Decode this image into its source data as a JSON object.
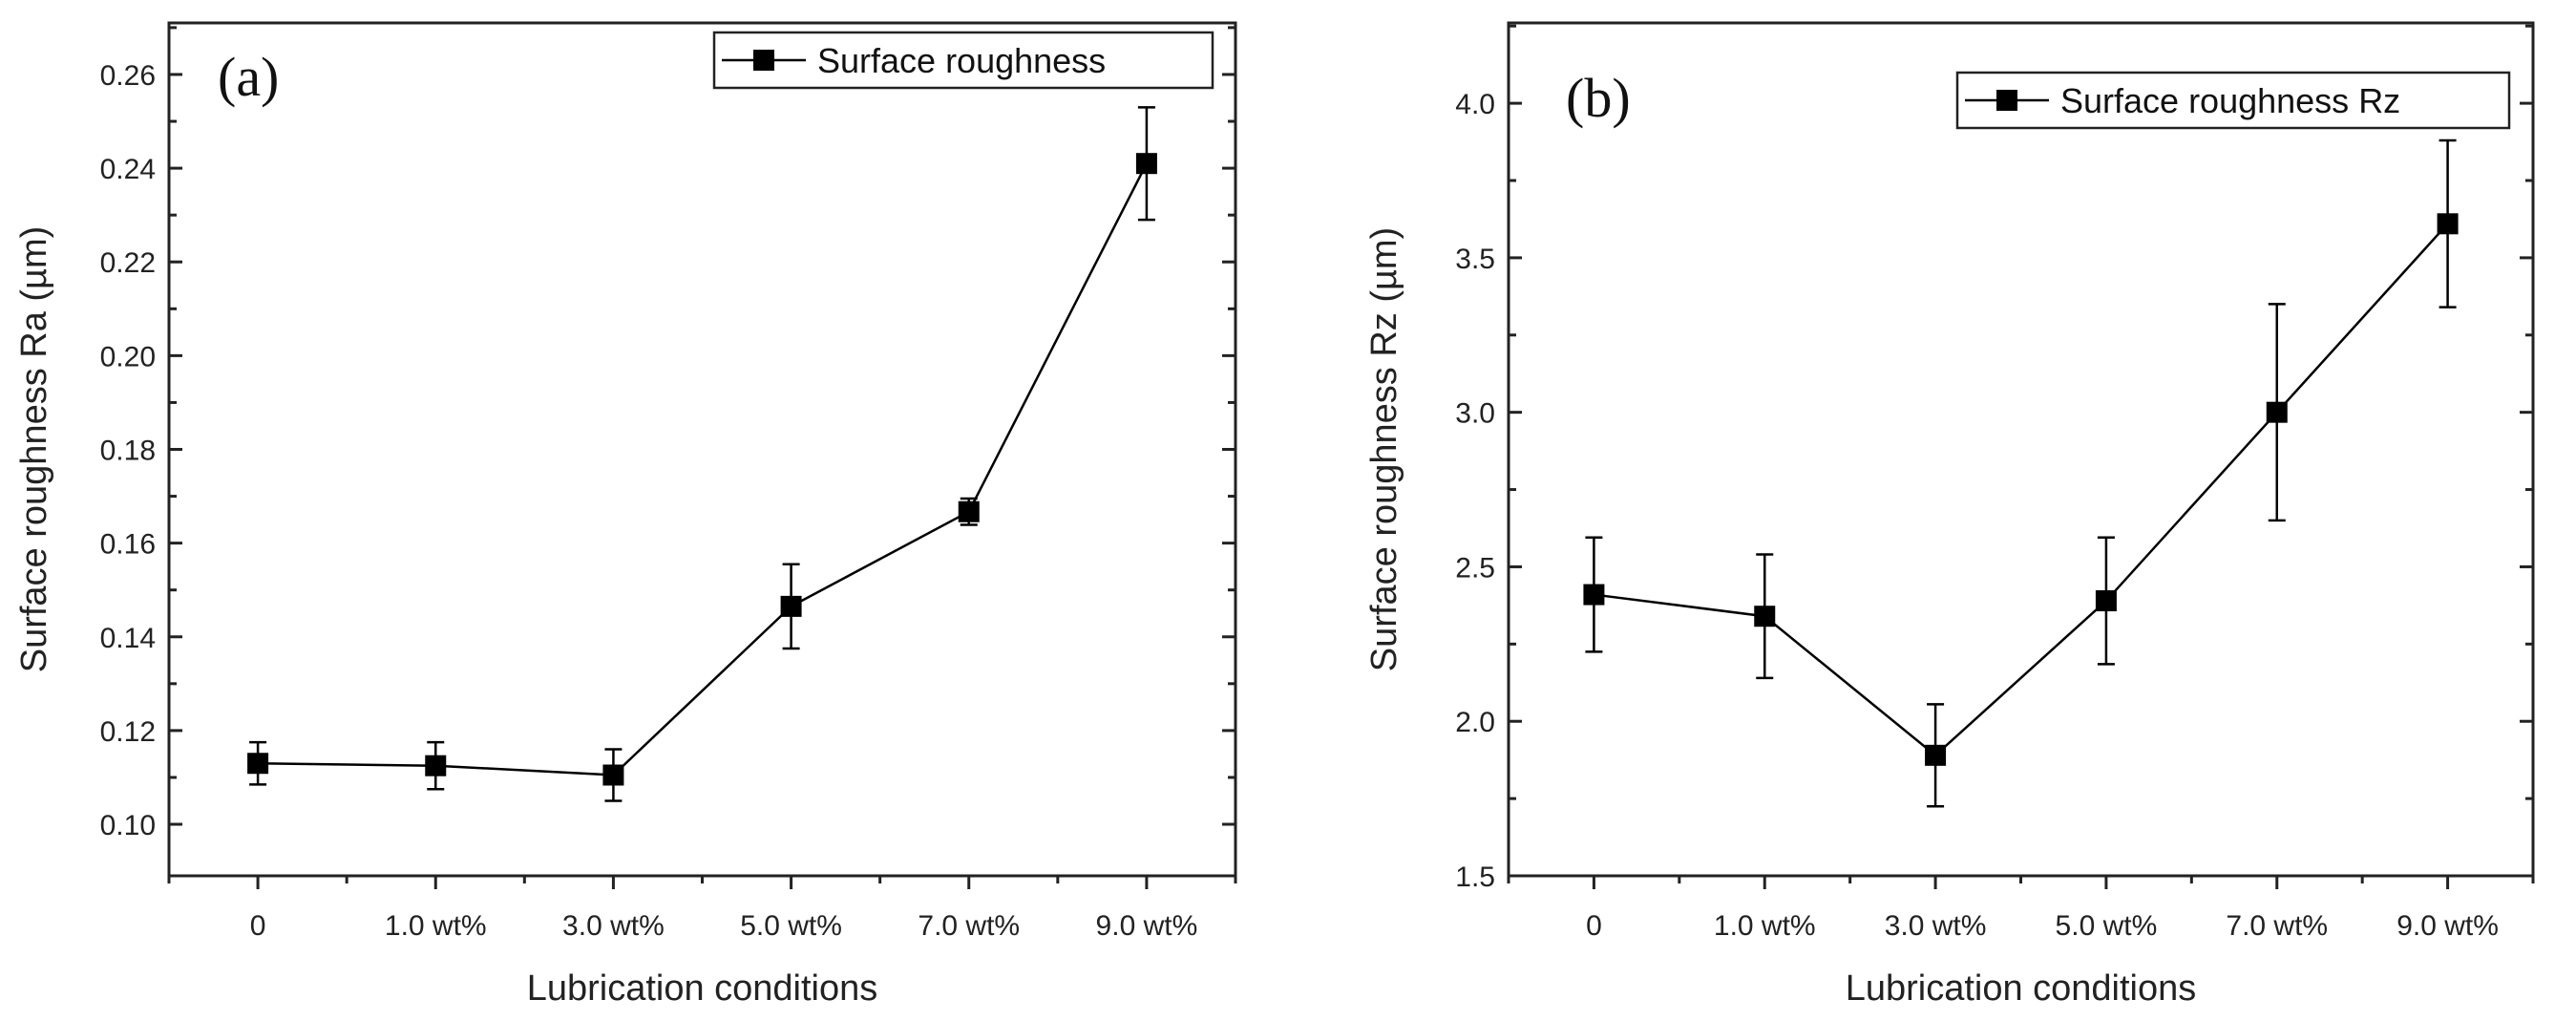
{
  "chart_data": [
    {
      "type": "line",
      "panel_label": "(a)",
      "title": "",
      "xlabel": "Lubrication conditions",
      "ylabel": "Surface roughness Ra (µm)",
      "categories": [
        "0",
        "1.0 wt%",
        "3.0 wt%",
        "5.0 wt%",
        "7.0 wt%",
        "9.0 wt%"
      ],
      "ylim": [
        0.089,
        0.271
      ],
      "yticks": [
        0.1,
        0.12,
        0.14,
        0.16,
        0.18,
        0.2,
        0.22,
        0.24,
        0.26
      ],
      "ytick_labels": [
        "0.10",
        "0.12",
        "0.14",
        "0.16",
        "0.18",
        "0.20",
        "0.22",
        "0.24",
        "0.26"
      ],
      "legend_position": "top-right",
      "series": [
        {
          "name": "Surface roughness",
          "values": [
            0.113,
            0.1125,
            0.1105,
            0.1465,
            0.1667,
            0.241
          ],
          "error": [
            0.0045,
            0.005,
            0.0055,
            0.009,
            0.0028,
            0.012
          ],
          "color": "#000000",
          "marker": "square"
        }
      ]
    },
    {
      "type": "line",
      "panel_label": "(b)",
      "title": "",
      "xlabel": "Lubrication conditions",
      "ylabel": "Surface roughness Rz (µm)",
      "categories": [
        "0",
        "1.0 wt%",
        "3.0 wt%",
        "5.0 wt%",
        "7.0 wt%",
        "9.0 wt%"
      ],
      "ylim": [
        1.5,
        4.26
      ],
      "yticks": [
        1.5,
        2.0,
        2.5,
        3.0,
        3.5,
        4.0
      ],
      "ytick_labels": [
        "1.5",
        "2.0",
        "2.5",
        "3.0",
        "3.5",
        "4.0"
      ],
      "legend_position": "top-right",
      "series": [
        {
          "name": "Surface roughness Rz",
          "values": [
            2.41,
            2.34,
            1.89,
            2.39,
            3.0,
            3.61
          ],
          "error": [
            0.185,
            0.2,
            0.165,
            0.205,
            0.35,
            0.27
          ],
          "color": "#000000",
          "marker": "square"
        }
      ]
    }
  ]
}
